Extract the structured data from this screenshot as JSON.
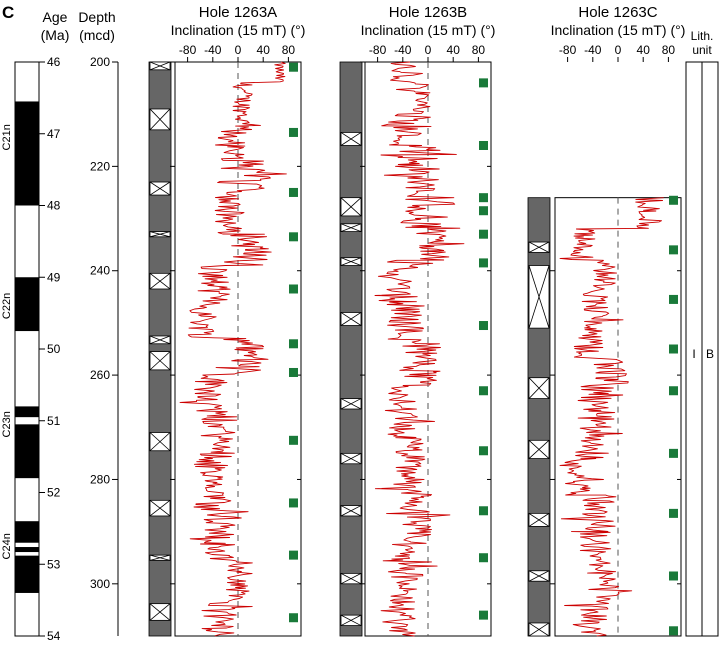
{
  "panel_label": "C",
  "age_axis": {
    "title_line1": "Age",
    "title_line2": "(Ma)",
    "ticks": [
      "46",
      "47",
      "48",
      "49",
      "50",
      "51",
      "52",
      "53",
      "54"
    ],
    "range": [
      46,
      54
    ]
  },
  "depth_axis": {
    "title_line1": "Depth",
    "title_line2": "(mcd)",
    "ticks": [
      "200",
      "220",
      "240",
      "260",
      "280",
      "300"
    ],
    "range": [
      200,
      310
    ]
  },
  "chrons": [
    {
      "name": "C21n",
      "age_mid": 47.05
    },
    {
      "name": "C22n",
      "age_mid": 49.4
    },
    {
      "name": "C23n",
      "age_mid": 51.05
    },
    {
      "name": "C24n",
      "age_mid": 52.75
    }
  ],
  "polarity_black_intervals": [
    [
      46.55,
      48.0
    ],
    [
      49.0,
      49.75
    ],
    [
      50.8,
      50.95
    ],
    [
      51.05,
      51.8
    ],
    [
      52.4,
      52.7
    ],
    [
      52.76,
      52.83
    ],
    [
      52.88,
      53.4
    ]
  ],
  "inclination_axis_label": "Inclination (15 mT) (°)",
  "inclination_ticks": [
    "-80",
    "-40",
    "0",
    "40",
    "80"
  ],
  "lith_header_line1": "Lith.",
  "lith_header_line2": "unit",
  "lith_unit_roman": "I",
  "lith_unit_letter": "B",
  "colors": {
    "core_recovered": "#666666",
    "inclination_line": "#cc0000",
    "square_marker": "#1a7a3a",
    "polarity_black": "#000000"
  },
  "chart_data": {
    "type": "line",
    "xlabel": "Inclination (15 mT) (°)",
    "ylabel": "Depth (mcd)",
    "xlim": [
      -100,
      100
    ],
    "ylim": [
      200,
      310
    ],
    "holes": [
      {
        "title": "Hole 1263A",
        "depth_range": [
          200,
          310
        ],
        "core_gaps": [
          [
            200,
            201.5
          ],
          [
            209,
            213
          ],
          [
            223,
            225.5
          ],
          [
            232.5,
            233.5
          ],
          [
            240.5,
            243.5
          ],
          [
            252.5,
            254
          ],
          [
            255.5,
            259
          ],
          [
            271,
            274.5
          ],
          [
            284,
            287
          ],
          [
            294.5,
            295.5
          ],
          [
            303.8,
            307
          ]
        ],
        "core_markers_depth": [
          201,
          213.5,
          225,
          233.5,
          243.5,
          254,
          259.5,
          272.5,
          284.5,
          294.5,
          306.5
        ],
        "segments": [
          {
            "depth_from": 200,
            "depth_to": 204,
            "center": 65,
            "amp": 10
          },
          {
            "depth_from": 204,
            "depth_to": 213,
            "center": 8,
            "amp": 16
          },
          {
            "depth_from": 213,
            "depth_to": 219,
            "center": -12,
            "amp": 26
          },
          {
            "depth_from": 219,
            "depth_to": 225,
            "center": 25,
            "amp": 28
          },
          {
            "depth_from": 225,
            "depth_to": 233,
            "center": -15,
            "amp": 22
          },
          {
            "depth_from": 233,
            "depth_to": 239,
            "center": 20,
            "amp": 32
          },
          {
            "depth_from": 239,
            "depth_to": 247,
            "center": -38,
            "amp": 26
          },
          {
            "depth_from": 247,
            "depth_to": 253,
            "center": -55,
            "amp": 24
          },
          {
            "depth_from": 253,
            "depth_to": 260,
            "center": 18,
            "amp": 26
          },
          {
            "depth_from": 260,
            "depth_to": 268,
            "center": -42,
            "amp": 28
          },
          {
            "depth_from": 268,
            "depth_to": 276,
            "center": -30,
            "amp": 30
          },
          {
            "depth_from": 276,
            "depth_to": 286,
            "center": -45,
            "amp": 26
          },
          {
            "depth_from": 286,
            "depth_to": 296,
            "center": -28,
            "amp": 26
          },
          {
            "depth_from": 296,
            "depth_to": 303,
            "center": 2,
            "amp": 22
          },
          {
            "depth_from": 303,
            "depth_to": 310,
            "center": -30,
            "amp": 28
          }
        ]
      },
      {
        "title": "Hole 1263B",
        "depth_range": [
          200,
          310
        ],
        "core_gaps": [
          [
            213.5,
            216
          ],
          [
            226,
            229.5
          ],
          [
            231,
            232.5
          ],
          [
            237.5,
            239
          ],
          [
            248,
            250.5
          ],
          [
            264.5,
            266.5
          ],
          [
            275,
            277
          ],
          [
            285,
            287
          ],
          [
            298,
            300
          ],
          [
            306,
            308
          ]
        ],
        "core_markers_depth": [
          204,
          216,
          226,
          228.5,
          233,
          238.5,
          250.5,
          263,
          274.5,
          286,
          295,
          306
        ],
        "segments": [
          {
            "depth_from": 200,
            "depth_to": 204,
            "center": -40,
            "amp": 22
          },
          {
            "depth_from": 204,
            "depth_to": 210,
            "center": -10,
            "amp": 14
          },
          {
            "depth_from": 210,
            "depth_to": 216,
            "center": -35,
            "amp": 28
          },
          {
            "depth_from": 216,
            "depth_to": 226,
            "center": -15,
            "amp": 38
          },
          {
            "depth_from": 226,
            "depth_to": 232,
            "center": -5,
            "amp": 36
          },
          {
            "depth_from": 232,
            "depth_to": 238,
            "center": 8,
            "amp": 26
          },
          {
            "depth_from": 238,
            "depth_to": 246,
            "center": -42,
            "amp": 26
          },
          {
            "depth_from": 246,
            "depth_to": 254,
            "center": -35,
            "amp": 30
          },
          {
            "depth_from": 254,
            "depth_to": 262,
            "center": -15,
            "amp": 30
          },
          {
            "depth_from": 262,
            "depth_to": 272,
            "center": -42,
            "amp": 26
          },
          {
            "depth_from": 272,
            "depth_to": 282,
            "center": -30,
            "amp": 26
          },
          {
            "depth_from": 282,
            "depth_to": 292,
            "center": -20,
            "amp": 26
          },
          {
            "depth_from": 292,
            "depth_to": 300,
            "center": -35,
            "amp": 28
          },
          {
            "depth_from": 300,
            "depth_to": 310,
            "center": -40,
            "amp": 22
          }
        ]
      },
      {
        "title": "Hole 1263C",
        "depth_range": [
          226,
          310
        ],
        "core_gaps": [
          [
            234.5,
            236.5
          ],
          [
            239,
            251
          ],
          [
            260.5,
            264.5
          ],
          [
            272.5,
            276
          ],
          [
            286.5,
            289
          ],
          [
            297.5,
            299.5
          ],
          [
            307.5,
            310
          ]
        ],
        "core_markers_depth": [
          226.5,
          236,
          245.5,
          255,
          263,
          275,
          286.5,
          298.5,
          309
        ],
        "segments": [
          {
            "depth_from": 226,
            "depth_to": 232,
            "center": 48,
            "amp": 22
          },
          {
            "depth_from": 232,
            "depth_to": 238,
            "center": -55,
            "amp": 20
          },
          {
            "depth_from": 238,
            "depth_to": 244,
            "center": -20,
            "amp": 20
          },
          {
            "depth_from": 244,
            "depth_to": 250,
            "center": -35,
            "amp": 22
          },
          {
            "depth_from": 250,
            "depth_to": 257,
            "center": -48,
            "amp": 24
          },
          {
            "depth_from": 257,
            "depth_to": 262,
            "center": -10,
            "amp": 28
          },
          {
            "depth_from": 262,
            "depth_to": 270,
            "center": -35,
            "amp": 30
          },
          {
            "depth_from": 270,
            "depth_to": 276,
            "center": -45,
            "amp": 24
          },
          {
            "depth_from": 276,
            "depth_to": 283,
            "center": -60,
            "amp": 26
          },
          {
            "depth_from": 283,
            "depth_to": 290,
            "center": -30,
            "amp": 30
          },
          {
            "depth_from": 290,
            "depth_to": 298,
            "center": -35,
            "amp": 26
          },
          {
            "depth_from": 298,
            "depth_to": 304,
            "center": -15,
            "amp": 20
          },
          {
            "depth_from": 304,
            "depth_to": 310,
            "center": -40,
            "amp": 24
          }
        ]
      }
    ]
  }
}
